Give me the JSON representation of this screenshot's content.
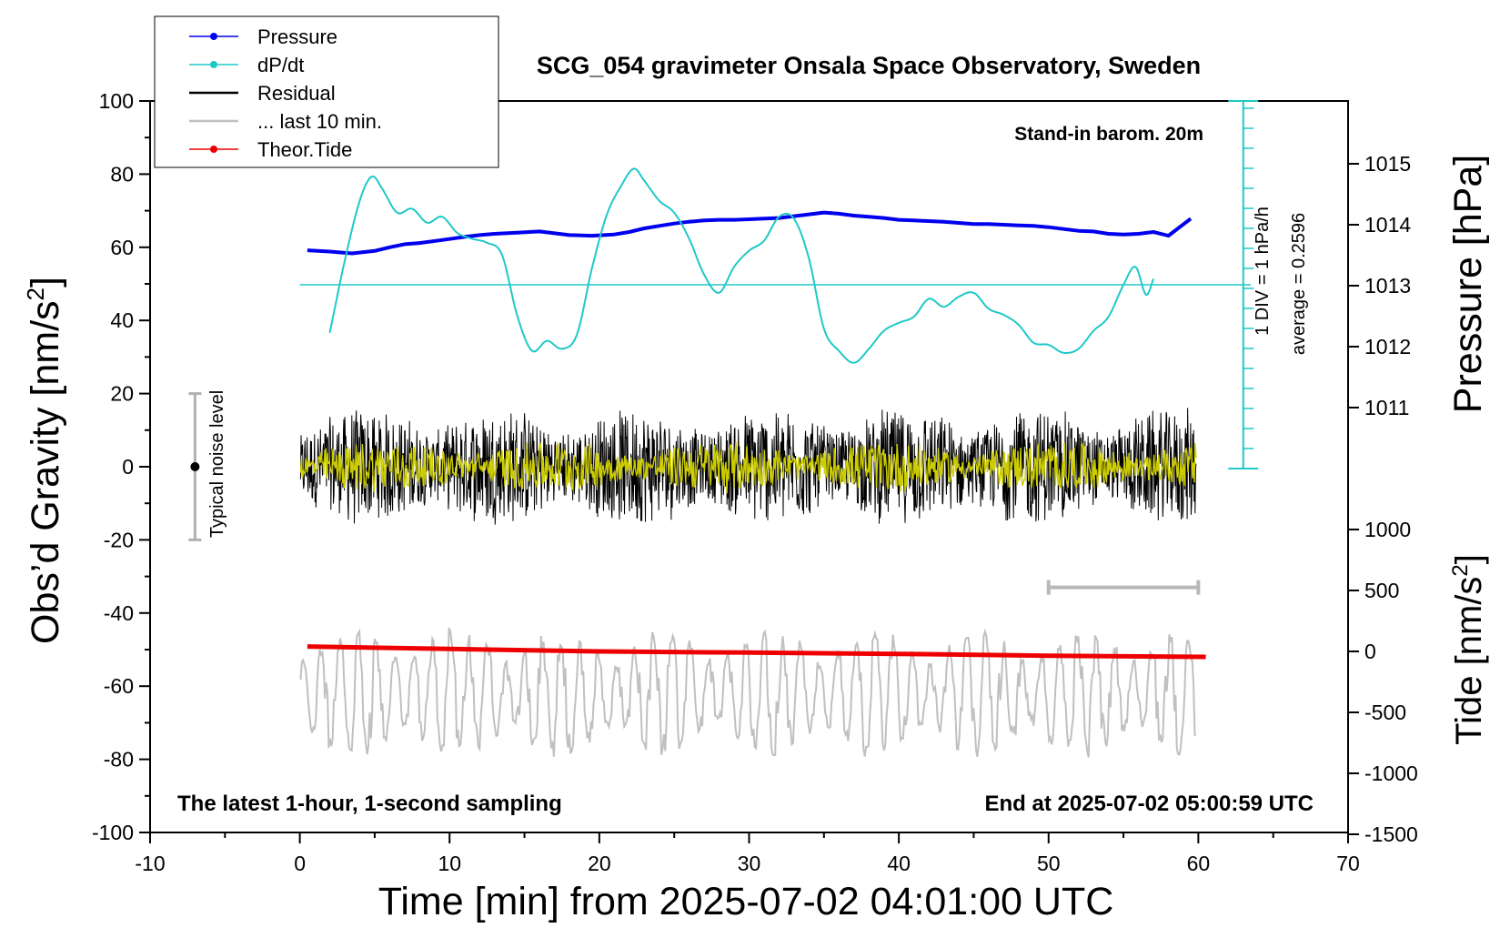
{
  "chart_data": {
    "type": "line",
    "title": "SCG_054 gravimeter Onsala Space Observatory, Sweden",
    "xlabel": "Time [min] from 2025-07-02 04:01:00 UTC",
    "ylabel_left": "Obs’d Gravity [nm/s",
    "ylabel_left_sup": "2",
    "ylabel_left_end": "]",
    "ylabel_right_pressure": "Pressure [hPa]",
    "ylabel_right_tide": "Tide [nm/s",
    "ylabel_right_tide_sup": "2",
    "ylabel_right_tide_end": "]",
    "xlim": [
      -10,
      70
    ],
    "ylim": [
      -100,
      100
    ],
    "x_ticks": [
      "-10",
      "0",
      "10",
      "20",
      "30",
      "40",
      "50",
      "60",
      "70"
    ],
    "y_ticks": [
      "100",
      "80",
      "60",
      "40",
      "20",
      "0",
      "-20",
      "-40",
      "-60",
      "-80",
      "-100"
    ],
    "pressure_axis": {
      "ticks": [
        "1015",
        "1014",
        "1013",
        "1012",
        "1011"
      ],
      "values": [
        1015,
        1014,
        1013,
        1012,
        1011
      ]
    },
    "tide_axis": {
      "ticks": [
        "1000",
        "500",
        "0",
        "-500",
        "-1000",
        "-1500"
      ],
      "values": [
        1000,
        500,
        0,
        -500,
        -1000,
        -1500
      ]
    },
    "legend": [
      {
        "label": "Pressure",
        "color": "#0000ee",
        "marker": true
      },
      {
        "label": "dP/dt",
        "color": "#20c8c8",
        "marker": true
      },
      {
        "label": "Residual",
        "color": "#000000",
        "marker": false
      },
      {
        "label": "... last 10 min.",
        "color": "#c0c0c0",
        "marker": false
      },
      {
        "label": "Theor.Tide",
        "color": "#ee0000",
        "marker": true
      }
    ],
    "legend_position": "top-left",
    "annotations": {
      "barom": "Stand-in barom. 20m",
      "scale_div": "1 DIV = 1 hPa/h",
      "average": "average = 0.2596",
      "noise": "Typical noise level",
      "latest": "The latest 1-hour, 1-second sampling",
      "end": "End at 2025-07-02 05:00:59 UTC"
    },
    "noise_bar": {
      "x": -7,
      "y_low": -20,
      "y_high": 20
    },
    "last10_bar": {
      "x_start": 50,
      "x_end": 60
    },
    "series": [
      {
        "name": "Pressure",
        "color": "#0000ee",
        "units": "hPa",
        "x": [
          0.5,
          2,
          3.5,
          5,
          6,
          7,
          8,
          9.5,
          11,
          12,
          13,
          14.5,
          16,
          17,
          18,
          19.5,
          21,
          22,
          23,
          24,
          25,
          26,
          27,
          28,
          29,
          30,
          31,
          32,
          33,
          34,
          35,
          36,
          37,
          38,
          39,
          40,
          41,
          42,
          43,
          44,
          45,
          46,
          47,
          48,
          49,
          50,
          51,
          52,
          53,
          54,
          55,
          56,
          57,
          58,
          59.5
        ],
        "y": [
          1013.58,
          1013.56,
          1013.53,
          1013.57,
          1013.63,
          1013.68,
          1013.7,
          1013.75,
          1013.8,
          1013.83,
          1013.85,
          1013.87,
          1013.89,
          1013.86,
          1013.83,
          1013.82,
          1013.84,
          1013.88,
          1013.94,
          1013.98,
          1014.02,
          1014.05,
          1014.07,
          1014.08,
          1014.08,
          1014.09,
          1014.1,
          1014.11,
          1014.14,
          1014.17,
          1014.2,
          1014.18,
          1014.15,
          1014.13,
          1014.11,
          1014.08,
          1014.07,
          1014.06,
          1014.05,
          1014.03,
          1014.01,
          1014.01,
          1014.0,
          1013.99,
          1013.98,
          1013.96,
          1013.93,
          1013.9,
          1013.89,
          1013.85,
          1013.84,
          1013.85,
          1013.88,
          1013.82,
          1014.1
        ]
      },
      {
        "name": "dP/dt",
        "color": "#20c8c8",
        "units": "hPa/h",
        "x": [
          2,
          3,
          4,
          4.8,
          5.5,
          6.5,
          7.5,
          8.5,
          9.5,
          10.5,
          11.5,
          12.5,
          13.5,
          14.5,
          15.5,
          16.5,
          17.5,
          18.5,
          19.5,
          20.5,
          21.5,
          22.3,
          23,
          24,
          25,
          26,
          27,
          28,
          29,
          30,
          31,
          32,
          33,
          34,
          35,
          36,
          37,
          38,
          39,
          40,
          41,
          42,
          43,
          44,
          45,
          46,
          47,
          48,
          49,
          50,
          51,
          52,
          53,
          54,
          55,
          55.8,
          56.5,
          57
        ],
        "y": [
          -2.4,
          1.2,
          4.2,
          5.4,
          4.8,
          3.6,
          3.8,
          3.1,
          3.4,
          2.6,
          2.3,
          2.1,
          1.5,
          -1.5,
          -3.3,
          -2.8,
          -3.2,
          -2.5,
          0.8,
          3.5,
          5.0,
          5.8,
          5.2,
          4.2,
          3.6,
          2.3,
          0.5,
          -0.4,
          0.9,
          1.7,
          2.2,
          3.4,
          3.3,
          1.3,
          -2.2,
          -3.3,
          -3.9,
          -3.2,
          -2.3,
          -1.9,
          -1.6,
          -0.7,
          -1.1,
          -0.6,
          -0.4,
          -1.2,
          -1.5,
          -2.0,
          -2.9,
          -3.0,
          -3.4,
          -3.2,
          -2.3,
          -1.6,
          0.0,
          0.9,
          -0.5,
          0.3
        ]
      },
      {
        "name": "Theor.Tide",
        "color": "#ee0000",
        "units": "nm/s2",
        "x": [
          0.5,
          10,
          20,
          30,
          40,
          50,
          60.5
        ],
        "y": [
          40,
          20,
          0,
          -10,
          -20,
          -35,
          -45
        ]
      }
    ]
  }
}
